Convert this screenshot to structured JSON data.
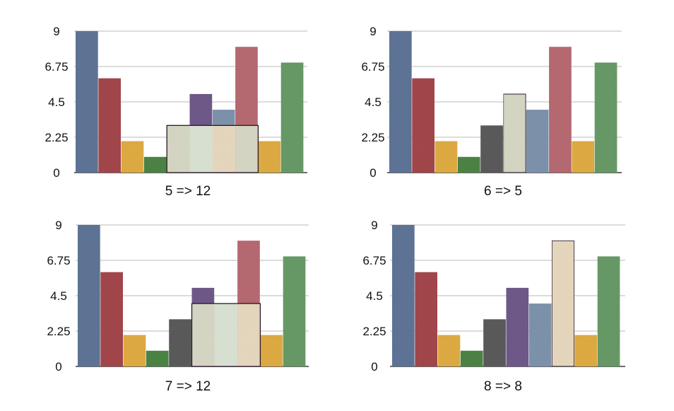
{
  "colors": {
    "blue": "#5f7597",
    "red": "#a4474c",
    "yellow": "#e0ac43",
    "green": "#4d8545",
    "purple": "#6f5a8a",
    "steel": "#7e93ad",
    "pink": "#b86a72",
    "sage": "#689b68",
    "dark": "#5b5b5b",
    "overlay1": "#d7d8c5",
    "overlay2": "#dbe4d4",
    "overlay3": "#e8d9c0",
    "overlay_stroke": "#2a1a2a"
  },
  "chart_data": [
    {
      "type": "bar",
      "title": "5 => 12",
      "ylim": [
        0,
        9
      ],
      "yticks": [
        "0",
        "2.25",
        "4.5",
        "6.75",
        "9"
      ],
      "values": [
        9,
        6,
        2,
        1,
        3,
        5,
        4,
        8,
        2,
        7
      ],
      "colors": [
        "blue",
        "red",
        "yellow",
        "green",
        "overlay1",
        "purple",
        "steel",
        "pink",
        "yellow",
        "sage"
      ],
      "overlay": {
        "start": 4,
        "end": 8,
        "value": 3
      }
    },
    {
      "type": "bar",
      "title": "6 => 5",
      "ylim": [
        0,
        9
      ],
      "yticks": [
        "0",
        "2.25",
        "4.5",
        "6.75",
        "9"
      ],
      "values": [
        9,
        6,
        2,
        1,
        3,
        5,
        4,
        8,
        2,
        7
      ],
      "colors": [
        "blue",
        "red",
        "yellow",
        "green",
        "dark",
        "overlay1",
        "steel",
        "pink",
        "yellow",
        "sage"
      ],
      "highlight": 5
    },
    {
      "type": "bar",
      "title": "7 => 12",
      "ylim": [
        0,
        9
      ],
      "yticks": [
        "0",
        "2.25",
        "4.5",
        "6.75",
        "9"
      ],
      "values": [
        9,
        6,
        2,
        1,
        3,
        5,
        4,
        8,
        2,
        7
      ],
      "colors": [
        "blue",
        "red",
        "yellow",
        "green",
        "dark",
        "purple",
        "overlay1",
        "pink",
        "yellow",
        "sage"
      ],
      "overlay": {
        "start": 5,
        "end": 8,
        "value": 4
      }
    },
    {
      "type": "bar",
      "title": "8 => 8",
      "ylim": [
        0,
        9
      ],
      "yticks": [
        "0",
        "2.25",
        "4.5",
        "6.75",
        "9"
      ],
      "values": [
        9,
        6,
        2,
        1,
        3,
        5,
        4,
        8,
        2,
        7
      ],
      "colors": [
        "blue",
        "red",
        "yellow",
        "green",
        "dark",
        "purple",
        "steel",
        "overlay3",
        "yellow",
        "sage"
      ],
      "highlight": 7
    }
  ]
}
